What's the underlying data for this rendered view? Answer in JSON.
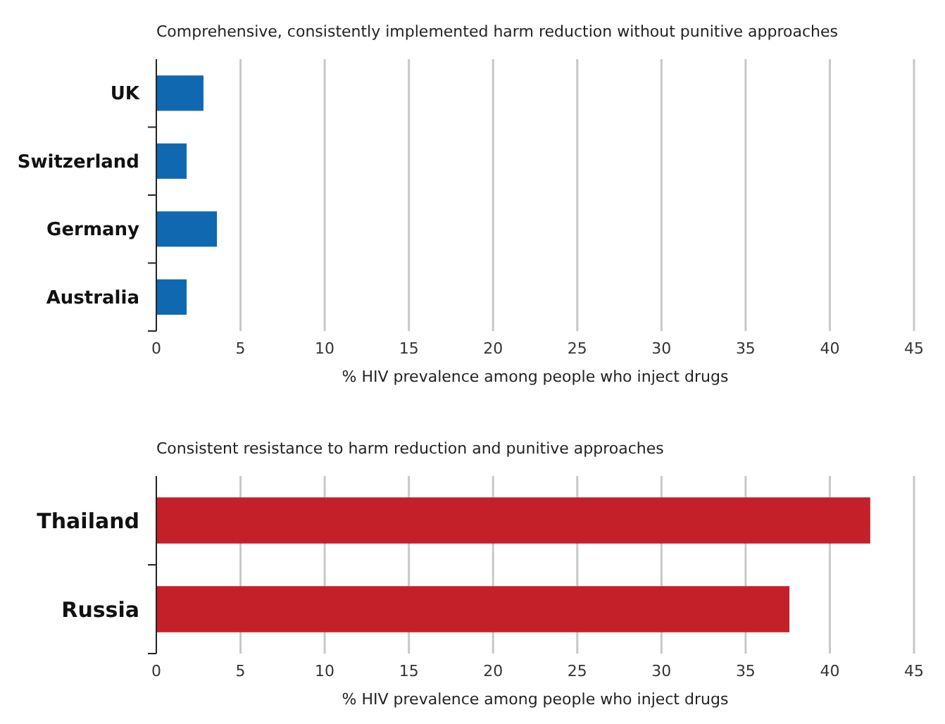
{
  "chart_data": [
    {
      "type": "bar",
      "orientation": "horizontal",
      "title": "Comprehensive, consistently implemented harm reduction without punitive approaches",
      "categories": [
        "UK",
        "Switzerland",
        "Germany",
        "Australia"
      ],
      "values": [
        2.8,
        1.8,
        3.6,
        1.8
      ],
      "color": "#0f68b0",
      "xlim": [
        0,
        45
      ],
      "xticks": [
        0,
        5,
        10,
        15,
        20,
        25,
        30,
        35,
        40,
        45
      ],
      "xlabel": "% HIV prevalence among people who inject drugs",
      "grid": "x"
    },
    {
      "type": "bar",
      "orientation": "horizontal",
      "title": "Consistent resistance to harm reduction and punitive approaches",
      "categories": [
        "Thailand",
        "Russia"
      ],
      "values": [
        42.4,
        37.6
      ],
      "color": "#c4202a",
      "xlim": [
        0,
        45
      ],
      "xticks": [
        0,
        5,
        10,
        15,
        20,
        25,
        30,
        35,
        40,
        45
      ],
      "xlabel": "% HIV prevalence among people who inject drugs",
      "grid": "x"
    }
  ]
}
